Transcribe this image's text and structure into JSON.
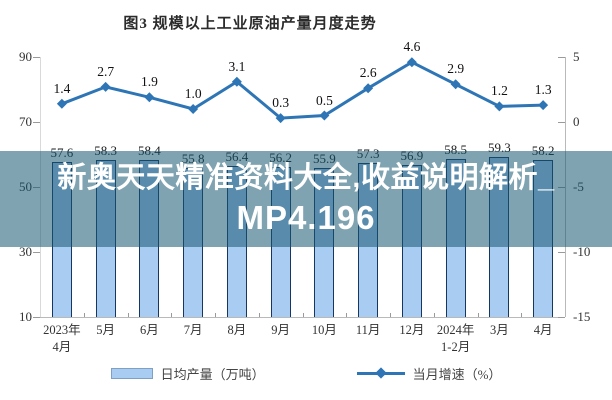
{
  "title": "图3 规模以上工业原油产量月度走势",
  "overlay_banner": {
    "line1": "新奥天天精准资料大全,收益说明解析_",
    "line2": "MP4.196",
    "bg_color": "#175872",
    "bg_opacity": 0.55,
    "text_color": "#ffffff"
  },
  "chart_data": {
    "type": "combo-bar-line",
    "title": "图3 规模以上工业原油产量月度走势",
    "categories": [
      [
        "2023年",
        "4月"
      ],
      [
        "5月"
      ],
      [
        "6月"
      ],
      [
        "7月"
      ],
      [
        "8月"
      ],
      [
        "9月"
      ],
      [
        "10月"
      ],
      [
        "11月"
      ],
      [
        "12月"
      ],
      [
        "2024年",
        "1-2月"
      ],
      [
        "3月"
      ],
      [
        "4月"
      ]
    ],
    "series": [
      {
        "name": "日均产量（万吨）",
        "type": "bar",
        "axis": "left",
        "values": [
          57.6,
          58.3,
          58.4,
          55.8,
          56.4,
          56.2,
          55.9,
          57.3,
          56.9,
          58.5,
          59.3,
          58.2
        ],
        "fill_color": "#A9CDF2",
        "border_color": "#17375E"
      },
      {
        "name": "当月增速（%）",
        "type": "line",
        "axis": "right",
        "values": [
          1.4,
          2.7,
          1.9,
          1.0,
          3.1,
          0.3,
          0.5,
          2.6,
          4.6,
          2.9,
          1.2,
          1.3
        ],
        "color": "#2E75B6",
        "marker": "diamond"
      }
    ],
    "left_axis": {
      "min": 10,
      "max": 90,
      "ticks": [
        90,
        70,
        50,
        30,
        10
      ]
    },
    "right_axis": {
      "min": -15,
      "max": 5,
      "ticks": [
        5,
        0,
        -5,
        -10,
        -15
      ]
    },
    "grid": false,
    "legend_position": "bottom"
  }
}
